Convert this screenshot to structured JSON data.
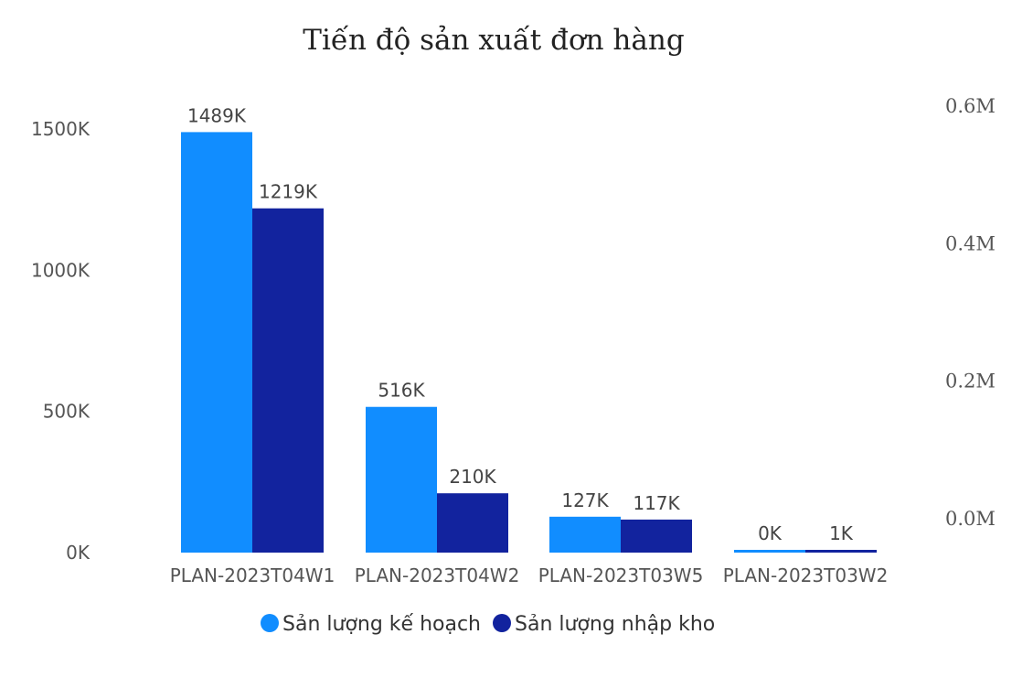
{
  "chart_data": {
    "type": "bar",
    "title": "Tiến độ sản xuất đơn hàng",
    "categories": [
      "PLAN-2023T04W1",
      "PLAN-2023T04W2",
      "PLAN-2023T03W5",
      "PLAN-2023T03W2"
    ],
    "series": [
      {
        "name": "Sản lượng kế hoạch",
        "color": "#118DFF",
        "values": [
          1489,
          516,
          127,
          0
        ],
        "labels": [
          "1489K",
          "516K",
          "127K",
          "0K"
        ]
      },
      {
        "name": "Sản lượng nhập kho",
        "color": "#12239E",
        "values": [
          1219,
          210,
          117,
          1
        ],
        "labels": [
          "1219K",
          "210K",
          "117K",
          "1K"
        ]
      }
    ],
    "unit": "K",
    "y_left": {
      "min": 0,
      "max": 1500,
      "ticks": [
        0,
        500,
        1000,
        1500
      ],
      "tick_labels": [
        "0K",
        "500K",
        "1000K",
        "1500K"
      ]
    },
    "y_right": {
      "min": 0,
      "max": 0.6,
      "ticks": [
        0,
        0.2,
        0.4,
        0.6
      ],
      "tick_labels": [
        "0.0M",
        "0.2M",
        "0.4M",
        "0.6M"
      ]
    },
    "grid": false,
    "legend_position": "bottom-center"
  }
}
